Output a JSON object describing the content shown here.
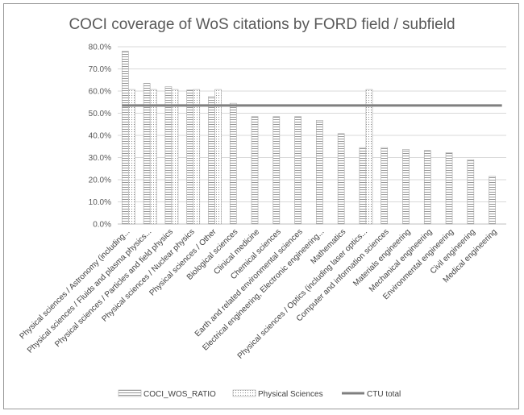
{
  "chart_data": {
    "type": "bar",
    "title": "COCI coverage of WoS citations by FORD field / subfield",
    "xlabel": "",
    "ylabel": "",
    "ylim": [
      0,
      0.8
    ],
    "yticks": [
      "0.0%",
      "10.0%",
      "20.0%",
      "30.0%",
      "40.0%",
      "50.0%",
      "60.0%",
      "70.0%",
      "80.0%"
    ],
    "grid": true,
    "legend": "bottom",
    "categories": [
      "Physical sciences / Astronomy (including...",
      "Physical sciences / Fluids and plasma physics...",
      "Physical sciences / Particles and field physics",
      "Physical sciences / Nuclear physics",
      "Physical sciences / Other",
      "Biological sciences",
      "Clinical medicine",
      "Chemical sciences",
      "Earth and related environmental sciences",
      "Electrical engineering, Electronic engineering...",
      "Mathematics",
      "Physical sciences / Optics (including laser optics...",
      "Computer and information sciences",
      "Materials engineering",
      "Mechanical engineering",
      "Environmental engineering",
      "Civil engineering",
      "Medical engineering"
    ],
    "series": [
      {
        "name": "COCI_WOS_RATIO",
        "kind": "bar",
        "pattern": "horizontal-lines",
        "values": [
          0.78,
          0.635,
          0.62,
          0.605,
          0.575,
          0.545,
          0.485,
          0.485,
          0.485,
          0.468,
          0.408,
          0.345,
          0.345,
          0.337,
          0.332,
          0.322,
          0.29,
          0.215
        ]
      },
      {
        "name": "Physical Sciences",
        "kind": "bar",
        "pattern": "dots",
        "values": [
          0.607,
          0.607,
          0.607,
          0.607,
          0.607,
          null,
          null,
          null,
          null,
          null,
          null,
          0.607,
          null,
          null,
          null,
          null,
          null,
          null
        ]
      },
      {
        "name": "CTU total",
        "kind": "line",
        "color": "#7f7f7f",
        "value": 0.535
      }
    ]
  }
}
